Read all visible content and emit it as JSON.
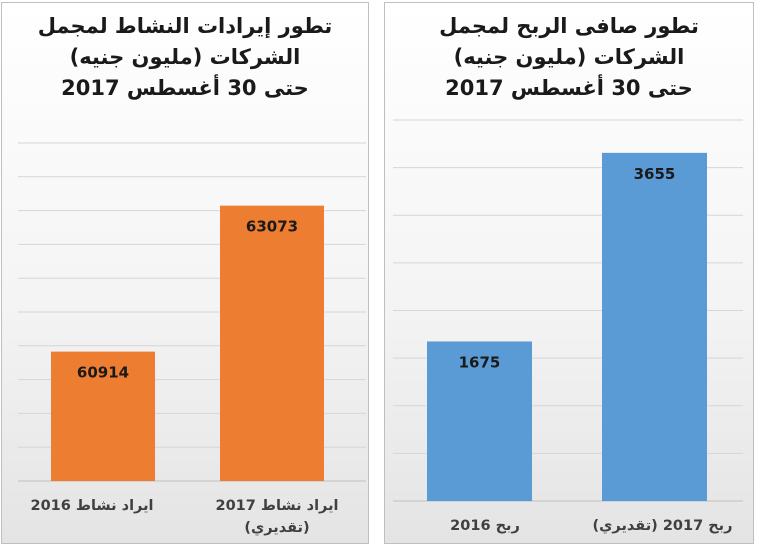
{
  "chart_data": [
    {
      "type": "bar",
      "title_lines": [
        "تطور إيرادات النشاط لمجمل",
        "الشركات (مليون جنيه)",
        "حتى 30 أغسطس 2017"
      ],
      "categories": [
        "ايراد نشاط 2016",
        "ايراد نشاط 2017 (تقديري)"
      ],
      "category_lines": [
        [
          "ايراد نشاط 2016"
        ],
        [
          "ايراد نشاط 2017",
          "(تقديري)"
        ]
      ],
      "values": [
        60914,
        63073
      ],
      "ylim": [
        59000,
        64000
      ],
      "gridlines": true,
      "bar_color": "#ED7D31",
      "data_labels": [
        "60914",
        "63073"
      ]
    },
    {
      "type": "bar",
      "title_lines": [
        "تطور صافى الربح لمجمل",
        "الشركات (مليون جنيه)",
        "حتى 30 أغسطس 2017"
      ],
      "categories": [
        "ربح 2016",
        "ربح 2017 (تقديري)"
      ],
      "category_lines": [
        [
          "ربح 2016"
        ],
        [
          "ربح 2017 (تقديري)"
        ]
      ],
      "values": [
        1675,
        3655
      ],
      "ylim": [
        0,
        4000
      ],
      "gridlines": true,
      "bar_color": "#5B9BD5",
      "data_labels": [
        "1675",
        "3655"
      ]
    }
  ]
}
